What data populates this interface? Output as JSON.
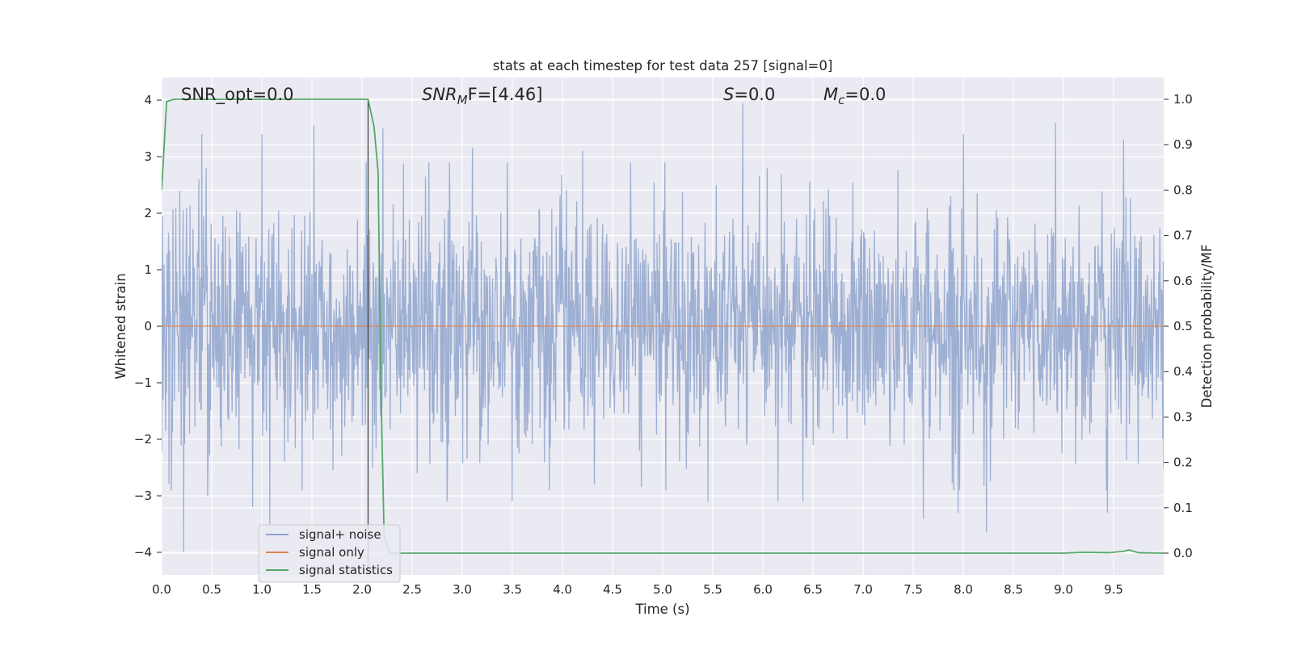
{
  "chart_data": {
    "type": "line",
    "title": "stats at each timestep for test data 257 [signal=0]",
    "xlabel": "Time (s)",
    "ylabel": "Whitened strain",
    "y2label": "Detection probability/MF",
    "xlim": [
      0.0,
      10.0
    ],
    "ylim": [
      -4.4,
      4.4
    ],
    "y2lim": [
      -0.048,
      1.048
    ],
    "xticks": [
      0.0,
      0.5,
      1.0,
      1.5,
      2.0,
      2.5,
      3.0,
      3.5,
      4.0,
      4.5,
      5.0,
      5.5,
      6.0,
      6.5,
      7.0,
      7.5,
      8.0,
      8.5,
      9.0,
      9.5
    ],
    "xtick_labels": [
      "0.0",
      "0.5",
      "1.0",
      "1.5",
      "2.0",
      "2.5",
      "3.0",
      "3.5",
      "4.0",
      "4.5",
      "5.0",
      "5.5",
      "6.0",
      "6.5",
      "7.0",
      "7.5",
      "8.0",
      "8.5",
      "9.0",
      "9.5"
    ],
    "yticks": [
      -4,
      -3,
      -2,
      -1,
      0,
      1,
      2,
      3,
      4
    ],
    "ytick_labels": [
      "−4",
      "−3",
      "−2",
      "−1",
      "0",
      "1",
      "2",
      "3",
      "4"
    ],
    "y2ticks": [
      0.0,
      0.1,
      0.2,
      0.3,
      0.4,
      0.5,
      0.6,
      0.7,
      0.8,
      0.9,
      1.0
    ],
    "y2tick_labels": [
      "0.0",
      "0.1",
      "0.2",
      "0.3",
      "0.4",
      "0.5",
      "0.6",
      "0.7",
      "0.8",
      "0.9",
      "1.0"
    ],
    "grid": true,
    "legend_position": "lower-left",
    "vline_x": 2.06,
    "annotations": {
      "snr_opt": "SNR_opt=0.0",
      "snr_mf_main": "SNR",
      "snr_mf_sub": "M",
      "snr_mf_rest": "F=[4.46]",
      "s_main": "S",
      "s_rest": "=0.0",
      "mc_main": "M",
      "mc_sub": "c",
      "mc_rest": "=0.0"
    },
    "series": [
      {
        "name": "signal+ noise",
        "color": "#8fa4cc",
        "style": "dense-noise",
        "n_points": 2048,
        "sigma": 1.0,
        "peaks": [
          [
            0.18,
            2.4
          ],
          [
            0.22,
            -4.0
          ],
          [
            0.4,
            3.4
          ],
          [
            0.46,
            -3.0
          ],
          [
            0.91,
            -3.2
          ],
          [
            1.0,
            3.4
          ],
          [
            1.08,
            -3.5
          ],
          [
            1.52,
            3.55
          ],
          [
            2.21,
            3.5
          ],
          [
            2.55,
            -2.6
          ],
          [
            2.85,
            -3.1
          ],
          [
            3.1,
            3.15
          ],
          [
            3.5,
            -3.1
          ],
          [
            4.2,
            3.1
          ],
          [
            4.32,
            -2.8
          ],
          [
            5.8,
            3.95
          ],
          [
            5.45,
            -3.1
          ],
          [
            6.15,
            -3.1
          ],
          [
            6.4,
            -3.1
          ],
          [
            7.6,
            -3.4
          ],
          [
            7.95,
            -3.3
          ],
          [
            8.23,
            -3.65
          ],
          [
            8.0,
            3.4
          ],
          [
            8.92,
            3.6
          ],
          [
            9.44,
            -3.3
          ],
          [
            9.6,
            3.3
          ]
        ]
      },
      {
        "name": "signal only",
        "color": "#dd8452",
        "style": "line",
        "values": [
          [
            0.0,
            0.0
          ],
          [
            10.0,
            0.0
          ]
        ]
      },
      {
        "name": "signal statistics",
        "color": "#55a868",
        "style": "line",
        "axis": "right",
        "values": [
          [
            0.0,
            0.8
          ],
          [
            0.05,
            0.995
          ],
          [
            0.12,
            1.0
          ],
          [
            2.06,
            1.0
          ],
          [
            2.12,
            0.94
          ],
          [
            2.16,
            0.84
          ],
          [
            2.19,
            0.35
          ],
          [
            2.22,
            0.04
          ],
          [
            2.27,
            0.0
          ],
          [
            9.0,
            0.0
          ],
          [
            9.2,
            0.002
          ],
          [
            9.45,
            0.001
          ],
          [
            9.6,
            0.004
          ],
          [
            9.65,
            0.007
          ],
          [
            9.75,
            0.001
          ],
          [
            10.0,
            0.0
          ]
        ]
      }
    ]
  }
}
